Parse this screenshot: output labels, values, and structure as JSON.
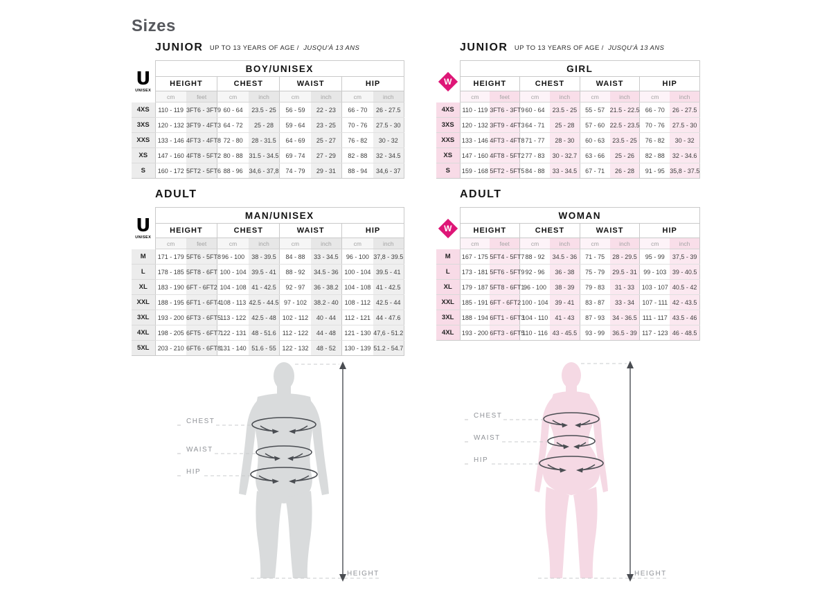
{
  "page": {
    "title": "Sizes"
  },
  "headings": {
    "junior": {
      "title": "JUNIOR",
      "subtitle": "UP TO 13 YEARS OF AGE /",
      "subtitle_italic": "JUSQU'À 13 ANS"
    },
    "adult": {
      "title": "ADULT"
    }
  },
  "colors": {
    "brand_pink": "#de1677",
    "table_border": "#c9c9c9",
    "unisex_shade": "#efefef",
    "unisex_size_bg": "#ececec",
    "woman_shade": "#fbe8f0",
    "woman_size_bg": "#f8dbe7",
    "male_silhouette": "#d9dbdc",
    "female_silhouette": "#f5d9e4",
    "title_color": "#55575c"
  },
  "tables": [
    {
      "id": "junior-boy",
      "theme": "unisex",
      "logo": "U",
      "logo_sub": "UNISEX",
      "title": "BOY/UNISEX",
      "groups": [
        "HEIGHT",
        "CHEST",
        "WAIST",
        "HIP"
      ],
      "units": [
        "cm",
        "feet",
        "cm",
        "inch",
        "cm",
        "inch",
        "cm",
        "inch"
      ],
      "rows": [
        {
          "size": "4XS",
          "values": [
            "110 - 119",
            "3FT6 - 3FT9",
            "60 - 64",
            "23.5 - 25",
            "56 - 59",
            "22 - 23",
            "66 - 70",
            "26 - 27.5"
          ]
        },
        {
          "size": "3XS",
          "values": [
            "120 - 132",
            "3FT9 - 4FT3",
            "64 - 72",
            "25 - 28",
            "59 - 64",
            "23 - 25",
            "70 - 76",
            "27.5 - 30"
          ]
        },
        {
          "size": "XXS",
          "values": [
            "133 - 146",
            "4FT3 - 4FT8",
            "72 - 80",
            "28 - 31.5",
            "64 - 69",
            "25 - 27",
            "76 - 82",
            "30 - 32"
          ]
        },
        {
          "size": "XS",
          "values": [
            "147 - 160",
            "4FT8 - 5FT2",
            "80 - 88",
            "31.5 - 34.5",
            "69 - 74",
            "27 - 29",
            "82 - 88",
            "32 - 34.5"
          ]
        },
        {
          "size": "S",
          "values": [
            "160 - 172",
            "5FT2 - 5FT6",
            "88 - 96",
            "34,6 - 37,8",
            "74 - 79",
            "29 - 31",
            "88 - 94",
            "34,6 - 37"
          ]
        }
      ]
    },
    {
      "id": "junior-girl",
      "theme": "woman",
      "logo": "W",
      "logo_sub": "",
      "title": "GIRL",
      "groups": [
        "HEIGHT",
        "CHEST",
        "WAIST",
        "HIP"
      ],
      "units": [
        "cm",
        "feet",
        "cm",
        "inch",
        "cm",
        "inch",
        "cm",
        "inch"
      ],
      "rows": [
        {
          "size": "4XS",
          "values": [
            "110 - 119",
            "3FT6 - 3FT9",
            "60 - 64",
            "23.5 - 25",
            "55 - 57",
            "21.5 - 22.5",
            "66 - 70",
            "26 - 27.5"
          ]
        },
        {
          "size": "3XS",
          "values": [
            "120 - 132",
            "3FT9 - 4FT3",
            "64 - 71",
            "25 - 28",
            "57 - 60",
            "22.5 - 23.5",
            "70 - 76",
            "27.5 - 30"
          ]
        },
        {
          "size": "XXS",
          "values": [
            "133 - 146",
            "4FT3 - 4FT8",
            "71 - 77",
            "28 - 30",
            "60 - 63",
            "23.5 - 25",
            "76 - 82",
            "30 - 32"
          ]
        },
        {
          "size": "XS",
          "values": [
            "147 - 160",
            "4FT8 - 5FT2",
            "77 - 83",
            "30 - 32.7",
            "63 - 66",
            "25 - 26",
            "82 - 88",
            "32 - 34.6"
          ]
        },
        {
          "size": "S",
          "values": [
            "159 - 168",
            "5FT2 - 5FT5",
            "84 - 88",
            "33 - 34.5",
            "67 - 71",
            "26 - 28",
            "91 - 95",
            "35,8 - 37.5"
          ]
        }
      ]
    },
    {
      "id": "adult-man",
      "theme": "unisex",
      "logo": "U",
      "logo_sub": "UNISEX",
      "title": "MAN/UNISEX",
      "groups": [
        "HEIGHT",
        "CHEST",
        "WAIST",
        "HIP"
      ],
      "units": [
        "cm",
        "feet",
        "cm",
        "inch",
        "cm",
        "inch",
        "cm",
        "inch"
      ],
      "rows": [
        {
          "size": "M",
          "values": [
            "171 - 179",
            "5FT6 - 5FT8",
            "96 - 100",
            "38 - 39.5",
            "84 - 88",
            "33 - 34.5",
            "96 - 100",
            "37,8 - 39.5"
          ]
        },
        {
          "size": "L",
          "values": [
            "178 - 185",
            "5FT8 - 6FT",
            "100 - 104",
            "39.5 - 41",
            "88 - 92",
            "34.5 - 36",
            "100 - 104",
            "39.5 - 41"
          ]
        },
        {
          "size": "XL",
          "values": [
            "183 - 190",
            "6FT - 6FT2",
            "104 - 108",
            "41 - 42.5",
            "92 - 97",
            "36 - 38.2",
            "104 - 108",
            "41 - 42.5"
          ]
        },
        {
          "size": "XXL",
          "values": [
            "188 - 195",
            "6FT1 - 6FT4",
            "108 - 113",
            "42.5 - 44.5",
            "97 - 102",
            "38.2 - 40",
            "108 - 112",
            "42.5 - 44"
          ]
        },
        {
          "size": "3XL",
          "values": [
            "193 - 200",
            "6FT3 - 6FT5",
            "113 - 122",
            "42.5 - 48",
            "102 - 112",
            "40 - 44",
            "112 - 121",
            "44 - 47.6"
          ]
        },
        {
          "size": "4XL",
          "values": [
            "198 - 205",
            "6FT5 - 6FT7",
            "122 - 131",
            "48 - 51.6",
            "112 - 122",
            "44 - 48",
            "121 - 130",
            "47,6 - 51.2"
          ]
        },
        {
          "size": "5XL",
          "values": [
            "203 - 210",
            "6FT6 - 6FT8",
            "131 - 140",
            "51.6 - 55",
            "122 - 132",
            "48 - 52",
            "130 - 139",
            "51.2 - 54.7"
          ]
        }
      ]
    },
    {
      "id": "adult-woman",
      "theme": "woman",
      "logo": "W",
      "logo_sub": "",
      "title": "WOMAN",
      "groups": [
        "HEIGHT",
        "CHEST",
        "WAIST",
        "HIP"
      ],
      "units": [
        "cm",
        "feet",
        "cm",
        "inch",
        "cm",
        "inch",
        "cm",
        "inch"
      ],
      "rows": [
        {
          "size": "M",
          "values": [
            "167 - 175",
            "5FT4 - 5FT7",
            "88 - 92",
            "34.5 - 36",
            "71 - 75",
            "28 - 29.5",
            "95 - 99",
            "37,5 - 39"
          ]
        },
        {
          "size": "L",
          "values": [
            "173 - 181",
            "5FT6 - 5FT9",
            "92 - 96",
            "36 - 38",
            "75 - 79",
            "29.5 - 31",
            "99 - 103",
            "39 - 40.5"
          ]
        },
        {
          "size": "XL",
          "values": [
            "179 - 187",
            "5FT8 - 6FT1",
            "96 - 100",
            "38 - 39",
            "79 - 83",
            "31 - 33",
            "103 - 107",
            "40.5 - 42"
          ]
        },
        {
          "size": "XXL",
          "values": [
            "185 - 191",
            "6FT - 6FT2",
            "100 - 104",
            "39 - 41",
            "83 - 87",
            "33 - 34",
            "107 - 111",
            "42 - 43.5"
          ]
        },
        {
          "size": "3XL",
          "values": [
            "188 - 194",
            "6FT1 - 6FT3",
            "104 - 110",
            "41 - 43",
            "87 - 93",
            "34 - 36.5",
            "111 - 117",
            "43.5 - 46"
          ]
        },
        {
          "size": "4XL",
          "values": [
            "193 - 200",
            "6FT3 - 6FT5",
            "110 - 116",
            "43 - 45.5",
            "93 - 99",
            "36.5 - 39",
            "117 - 123",
            "46 - 48.5"
          ]
        }
      ]
    }
  ],
  "figures": {
    "male": {
      "girth_labels": [
        "CHEST",
        "WAIST",
        "HIP"
      ],
      "height_label": "HEIGHT"
    },
    "female": {
      "girth_labels": [
        "CHEST",
        "WAIST",
        "HIP"
      ],
      "height_label": "HEIGHT"
    }
  }
}
